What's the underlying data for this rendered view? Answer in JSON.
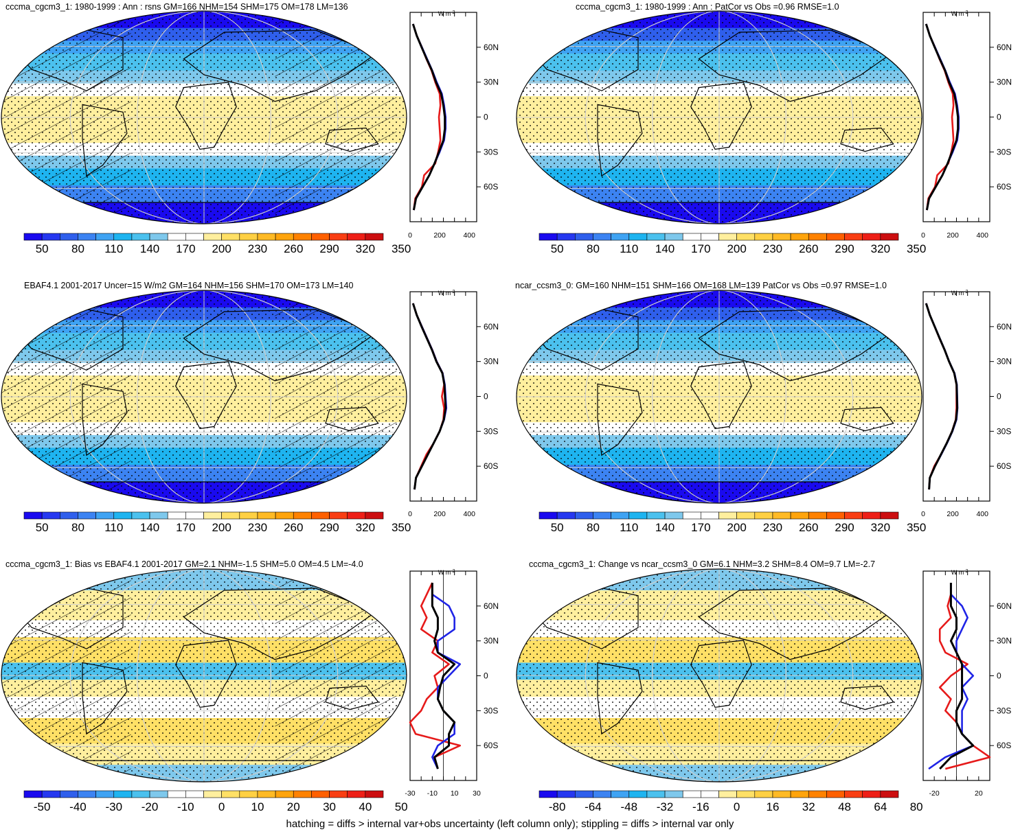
{
  "footer": "hatching = diffs > internal var+obs uncertainty (left column only); stippling = diffs > internal var only",
  "colors": {
    "scale": [
      "#1a0aef",
      "#2638f0",
      "#2f5fec",
      "#3c83f2",
      "#3fa3f3",
      "#1eb4f0",
      "#4bc1ee",
      "#7ec8ec",
      "#ffffff",
      "#ffffff",
      "#ffef9e",
      "#ffe066",
      "#ffd043",
      "#ffba25",
      "#ffa40c",
      "#ff8200",
      "#ff6000",
      "#f93e13",
      "#ee1f17",
      "#cc0e10"
    ],
    "line_model": "#e61a1a",
    "line_obs": "#1f24e6",
    "line_other": "#000000"
  },
  "lat_labels": [
    "60N",
    "30N",
    "0",
    "30S",
    "60S"
  ],
  "profile_unit": "W m",
  "profile_unit_sup": "-2",
  "panels": [
    {
      "id": "p1",
      "title": "cccma_cgcm3_1: 1980-1999 : Ann : rsns GM=166 NHM=154 SHM=175 OM=178 LM=136",
      "map_type": "abs",
      "hatching": true,
      "colorbar_labels": [
        "50",
        "80",
        "110",
        "140",
        "170",
        "200",
        "230",
        "260",
        "290",
        "320",
        "350"
      ],
      "profile_ticks": [
        "0",
        "200",
        "400"
      ],
      "chart_data": {
        "type": "line",
        "xlim": [
          0,
          450
        ],
        "lat": [
          -80,
          -70,
          -60,
          -50,
          -40,
          -30,
          -20,
          -10,
          0,
          10,
          20,
          30,
          40,
          50,
          60,
          70,
          80
        ],
        "series": [
          {
            "values": [
              25,
              35,
              80,
              95,
              170,
              190,
              205,
              200,
              195,
              205,
              200,
              170,
              145,
              110,
              80,
              45,
              20
            ]
          },
          {
            "values": [
              25,
              40,
              85,
              130,
              165,
              200,
              230,
              240,
              240,
              230,
              215,
              180,
              150,
              115,
              80,
              45,
              20
            ]
          },
          {
            "values": [
              25,
              40,
              85,
              130,
              165,
              195,
              225,
              235,
              235,
              225,
              210,
              175,
              148,
              112,
              78,
              45,
              20
            ]
          }
        ]
      }
    },
    {
      "id": "p2",
      "title": "cccma_cgcm3_1: 1980-1999 : Ann : PatCor vs Obs =0.96 RMSE=1.0",
      "map_type": "abs",
      "hatching": false,
      "colorbar_labels": [
        "50",
        "80",
        "110",
        "140",
        "170",
        "200",
        "230",
        "260",
        "290",
        "320",
        "350"
      ],
      "profile_ticks": [
        "0",
        "200",
        "400"
      ],
      "chart_data": {
        "type": "line",
        "xlim": [
          0,
          450
        ],
        "lat": [
          -80,
          -70,
          -60,
          -50,
          -40,
          -30,
          -20,
          -10,
          0,
          10,
          20,
          30,
          40,
          50,
          60,
          70,
          80
        ],
        "series": [
          {
            "values": [
              25,
              35,
              80,
              95,
              170,
              190,
              205,
              200,
              195,
              205,
              200,
              170,
              145,
              110,
              80,
              45,
              20
            ]
          },
          {
            "values": [
              25,
              40,
              85,
              130,
              165,
              200,
              230,
              240,
              240,
              230,
              215,
              180,
              150,
              115,
              80,
              45,
              20
            ]
          },
          {
            "values": [
              25,
              40,
              85,
              130,
              165,
              195,
              225,
              235,
              235,
              225,
              210,
              175,
              148,
              112,
              78,
              45,
              20
            ]
          }
        ]
      }
    },
    {
      "id": "p3",
      "title": "EBAF4.1 2001-2017 Uncer=15 W/m2 GM=164 NHM=156 SHM=170 OM=173 LM=140",
      "map_type": "abs",
      "hatching": true,
      "colorbar_labels": [
        "50",
        "80",
        "110",
        "140",
        "170",
        "200",
        "230",
        "260",
        "290",
        "320",
        "350"
      ],
      "profile_ticks": [
        "0",
        "200",
        "400"
      ],
      "chart_data": {
        "type": "line",
        "xlim": [
          0,
          450
        ],
        "lat": [
          -80,
          -70,
          -60,
          -50,
          -40,
          -30,
          -20,
          -10,
          0,
          10,
          20,
          30,
          40,
          50,
          60,
          70,
          80
        ],
        "series": [
          {
            "values": [
              30,
              40,
              75,
              110,
              160,
              200,
              225,
              230,
              215,
              230,
              220,
              180,
              150,
              115,
              80,
              45,
              20
            ]
          },
          {
            "values": [
              30,
              40,
              80,
              120,
              160,
              200,
              230,
              245,
              240,
              235,
              220,
              180,
              150,
              115,
              80,
              45,
              20
            ]
          },
          {
            "values": [
              30,
              40,
              80,
              120,
              160,
              200,
              228,
              240,
              236,
              232,
              218,
              178,
              148,
              113,
              78,
              45,
              20
            ]
          }
        ]
      }
    },
    {
      "id": "p4",
      "title": "ncar_ccsm3_0: GM=160 NHM=151 SHM=166 OM=168 LM=139 PatCor vs Obs =0.97 RMSE=1.0",
      "map_type": "abs",
      "hatching": false,
      "colorbar_labels": [
        "50",
        "80",
        "110",
        "140",
        "170",
        "200",
        "230",
        "260",
        "290",
        "320",
        "350"
      ],
      "profile_ticks": [
        "0",
        "200",
        "400"
      ],
      "chart_data": {
        "type": "line",
        "xlim": [
          0,
          450
        ],
        "lat": [
          -80,
          -70,
          -60,
          -50,
          -40,
          -30,
          -20,
          -10,
          0,
          10,
          20,
          30,
          40,
          50,
          60,
          70,
          80
        ],
        "series": [
          {
            "values": [
              40,
              45,
              75,
              120,
              160,
              195,
              220,
              225,
              225,
              225,
              210,
              175,
              145,
              110,
              78,
              45,
              20
            ]
          },
          {
            "values": [
              40,
              45,
              80,
              122,
              162,
              198,
              225,
              232,
              230,
              228,
              212,
              176,
              146,
              112,
              79,
              45,
              20
            ]
          },
          {
            "values": [
              40,
              45,
              80,
              120,
              160,
              196,
              222,
              230,
              228,
              226,
              210,
              175,
              145,
              111,
              78,
              45,
              20
            ]
          }
        ]
      }
    },
    {
      "id": "p5",
      "title": "cccma_cgcm3_1: Bias vs EBAF4.1 2001-2017 GM=2.1 NHM=-1.5 SHM=5.0 OM=4.5 LM=-4.0",
      "map_type": "diff",
      "hatching": true,
      "colorbar_labels": [
        "-50",
        "-40",
        "-30",
        "-20",
        "-10",
        "0",
        "10",
        "20",
        "30",
        "40",
        "50"
      ],
      "profile_ticks": [
        "-30",
        "-10",
        "10",
        "30"
      ],
      "chart_data": {
        "type": "line",
        "xlim": [
          -30,
          30
        ],
        "lat": [
          -80,
          -70,
          -60,
          -50,
          -40,
          -30,
          -20,
          -10,
          0,
          10,
          20,
          30,
          40,
          50,
          60,
          70,
          80
        ],
        "series": [
          {
            "values": [
              -5,
              -8,
              15,
              -25,
              -30,
              -20,
              -15,
              -5,
              -8,
              5,
              -10,
              -5,
              -20,
              -15,
              -20,
              -15,
              -10
            ]
          },
          {
            "values": [
              -5,
              -10,
              -5,
              10,
              10,
              0,
              -5,
              -5,
              5,
              15,
              -5,
              -5,
              10,
              10,
              5,
              -10,
              -10
            ]
          },
          {
            "values": [
              -5,
              -8,
              5,
              5,
              10,
              0,
              -5,
              -3,
              0,
              10,
              -5,
              -8,
              -5,
              -5,
              -10,
              -10,
              -10
            ]
          }
        ]
      }
    },
    {
      "id": "p6",
      "title": "cccma_cgcm3_1: Change vs ncar_ccsm3_0 GM=6.1 NHM=3.2 SHM=8.4 OM=9.7 LM=-2.7",
      "map_type": "diff",
      "hatching": false,
      "colorbar_labels": [
        "-80",
        "-64",
        "-48",
        "-32",
        "-16",
        "0",
        "16",
        "32",
        "48",
        "64",
        "80"
      ],
      "profile_ticks": [
        "-20",
        "20"
      ],
      "chart_data": {
        "type": "line",
        "xlim": [
          -30,
          30
        ],
        "lat": [
          -80,
          -70,
          -60,
          -50,
          -40,
          -30,
          -20,
          -10,
          0,
          10,
          20,
          30,
          40,
          50,
          60,
          70,
          80
        ],
        "series": [
          {
            "values": [
              -10,
              30,
              15,
              5,
              0,
              -10,
              -5,
              -15,
              -5,
              10,
              -10,
              -15,
              -15,
              -5,
              -8,
              -5,
              -5
            ]
          },
          {
            "values": [
              -25,
              -10,
              15,
              5,
              5,
              5,
              10,
              5,
              15,
              5,
              0,
              0,
              5,
              10,
              5,
              -5,
              -5
            ]
          },
          {
            "values": [
              -15,
              -5,
              15,
              5,
              0,
              0,
              5,
              5,
              5,
              5,
              0,
              -5,
              0,
              0,
              -5,
              -5,
              -5
            ]
          }
        ]
      }
    }
  ]
}
